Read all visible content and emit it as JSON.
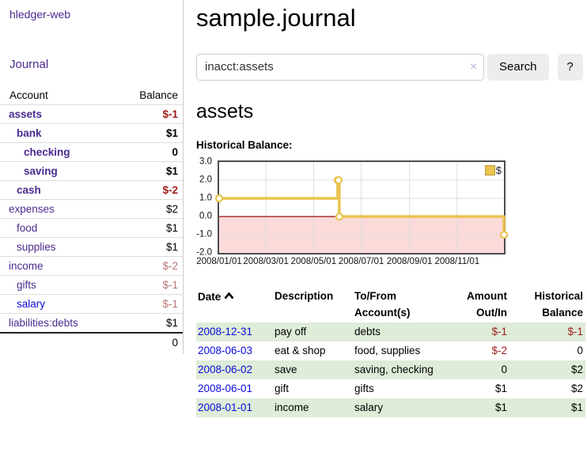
{
  "colors": {
    "accent_purple": "#4a2a8f",
    "link_blue": "#0b0bdd",
    "negative_strong": "#9e1c1c",
    "negative_muted": "#b97777",
    "row_shading_green": "#deecd8",
    "chart_gold": "#e9c44f",
    "negative_region_pink": "#fbdada"
  },
  "sidebar": {
    "brand": "hledger-web",
    "nav_journal": "Journal",
    "table": {
      "account_header": "Account",
      "balance_header": "Balance"
    },
    "accounts": [
      {
        "name": "assets",
        "depth": 1,
        "bold": true,
        "link_color": "purple",
        "balance": "$-1",
        "balance_style": "neg-strong"
      },
      {
        "name": "bank",
        "depth": 2,
        "bold": true,
        "link_color": "purple",
        "balance": "$1",
        "balance_style": "pos"
      },
      {
        "name": "checking",
        "depth": 3,
        "bold": true,
        "link_color": "purple",
        "balance": "0",
        "balance_style": "pos"
      },
      {
        "name": "saving",
        "depth": 3,
        "bold": true,
        "link_color": "purple",
        "balance": "$1",
        "balance_style": "pos"
      },
      {
        "name": "cash",
        "depth": 2,
        "bold": true,
        "link_color": "purple",
        "balance": "$-2",
        "balance_style": "neg-strong"
      },
      {
        "name": "expenses",
        "depth": 1,
        "bold": false,
        "link_color": "purple",
        "balance": "$2",
        "balance_style": "pos"
      },
      {
        "name": "food",
        "depth": 2,
        "bold": false,
        "link_color": "purple",
        "balance": "$1",
        "balance_style": "pos"
      },
      {
        "name": "supplies",
        "depth": 2,
        "bold": false,
        "link_color": "purple",
        "balance": "$1",
        "balance_style": "pos"
      },
      {
        "name": "income",
        "depth": 1,
        "bold": false,
        "link_color": "purple",
        "balance": "$-2",
        "balance_style": "neg-muted"
      },
      {
        "name": "gifts",
        "depth": 2,
        "bold": false,
        "link_color": "purple",
        "balance": "$-1",
        "balance_style": "neg-muted"
      },
      {
        "name": "salary",
        "depth": 2,
        "bold": false,
        "link_color": "blue",
        "balance": "$-1",
        "balance_style": "neg-muted"
      },
      {
        "name": "liabilities:debts",
        "depth": 1,
        "bold": false,
        "link_color": "purple",
        "balance": "$1",
        "balance_style": "pos"
      }
    ],
    "total": "0"
  },
  "main": {
    "title": "sample.journal",
    "search": {
      "value": "inacct:assets",
      "clear_label": "×",
      "search_button": "Search",
      "help_button": "?"
    },
    "account_heading": "assets",
    "chart_label": "Historical Balance:"
  },
  "chart_data": {
    "type": "line",
    "step": true,
    "title": "Historical Balance:",
    "xdomain": [
      "2008-01-01",
      "2008-12-31"
    ],
    "ylim": [
      -2,
      3
    ],
    "ytick_values": [
      3,
      2,
      1,
      0,
      -1,
      -2
    ],
    "yticks": [
      "3.0",
      "2.0",
      "1.0",
      "0.0",
      "-1.0",
      "-2.0"
    ],
    "xticks": [
      {
        "label": "2008/01/01",
        "date": "2008-01-01"
      },
      {
        "label": "2008/03/01",
        "date": "2008-03-01"
      },
      {
        "label": "2008/05/01",
        "date": "2008-05-01"
      },
      {
        "label": "2008/07/01",
        "date": "2008-07-01"
      },
      {
        "label": "2008/09/01",
        "date": "2008-09-01"
      },
      {
        "label": "2008/11/01",
        "date": "2008-11-01"
      }
    ],
    "series": [
      {
        "name": "$",
        "color": "#e9c44f",
        "marker_fill": "#ffffff",
        "points": [
          [
            "2008-01-01",
            1
          ],
          [
            "2008-06-01",
            2
          ],
          [
            "2008-06-02",
            2
          ],
          [
            "2008-06-03",
            0
          ],
          [
            "2008-12-31",
            -1
          ]
        ]
      }
    ],
    "negative_region_fill": "#fbdada",
    "zero_line_color": "#9b0f0f",
    "grid_color": "#dddddd",
    "legend": {
      "label": "$",
      "position": "top-right",
      "swatch_color": "#e9c44f"
    }
  },
  "register": {
    "columns": [
      "Date",
      "Description",
      "To/From Account(s)",
      "Amount Out/In",
      "Historical Balance"
    ],
    "sort": {
      "column": "Date",
      "direction": "ascending"
    },
    "rows": [
      {
        "date": "2008-12-31",
        "description": "pay off",
        "accounts": "debts",
        "amount": "$-1",
        "amount_negative": true,
        "balance": "$-1",
        "balance_negative": true,
        "shaded": true
      },
      {
        "date": "2008-06-03",
        "description": "eat & shop",
        "accounts": "food, supplies",
        "amount": "$-2",
        "amount_negative": true,
        "balance": "0",
        "balance_negative": false,
        "shaded": false
      },
      {
        "date": "2008-06-02",
        "description": "save",
        "accounts": "saving, checking",
        "amount": "0",
        "amount_negative": false,
        "balance": "$2",
        "balance_negative": false,
        "shaded": true
      },
      {
        "date": "2008-06-01",
        "description": "gift",
        "accounts": "gifts",
        "amount": "$1",
        "amount_negative": false,
        "balance": "$2",
        "balance_negative": false,
        "shaded": false
      },
      {
        "date": "2008-01-01",
        "description": "income",
        "accounts": "salary",
        "amount": "$1",
        "amount_negative": false,
        "balance": "$1",
        "balance_negative": false,
        "shaded": true
      }
    ]
  }
}
